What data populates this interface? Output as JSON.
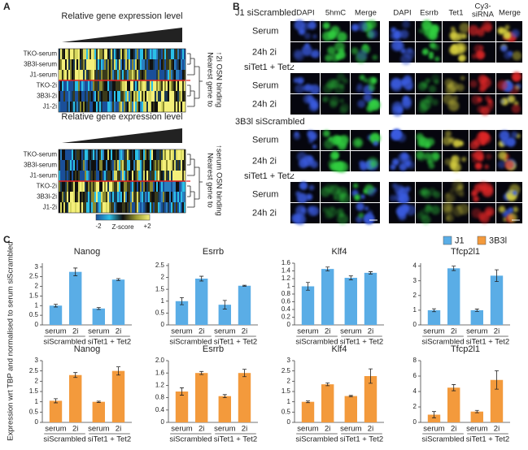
{
  "panel_a": {
    "label": "A",
    "heatmaps": [
      {
        "title": "Relative gene expression level",
        "rows": [
          "TKO-serum",
          "3B3l-serum",
          "J1-serum",
          "TKO-2i",
          "3B3l-2i",
          "J1-2i"
        ],
        "side_label": [
          "Nearest gene to",
          "↑2i OSN binding"
        ]
      },
      {
        "title": "Relative gene expression level",
        "rows": [
          "TKO-serum",
          "3B3l-serum",
          "J1-serum",
          "TKO-2i",
          "3B3l-2i",
          "J1-2i"
        ],
        "side_label": [
          "Nearest gene to",
          "↑serum OSN binding"
        ]
      }
    ],
    "colorbar": {
      "min_label": "-2",
      "title": "Z-score",
      "max_label": "+2"
    }
  },
  "panel_b": {
    "label": "B",
    "columns_left": [
      "DAPI",
      "5hmC",
      "Merge"
    ],
    "columns_right": [
      "DAPI",
      "Esrrb",
      "Tet1",
      [
        "Cy3-",
        "siRNA"
      ],
      "Merge"
    ],
    "blocks": [
      {
        "title": "J1 siScrambled",
        "rows": [
          "Serum",
          "24h 2i",
          "Serum",
          "24h 2i"
        ],
        "group_label": "siTet1 + Tet2"
      },
      {
        "title": "3B3l siScrambled",
        "rows": [
          "Serum",
          "24h 2i",
          "Serum",
          "24h 2i"
        ],
        "group_label": "siTet1 + Tet2"
      }
    ]
  },
  "panel_c": {
    "label": "C",
    "y_label": "Expression wrt TBP and normalised to serum siScrambled"
  },
  "chart_data": [
    {
      "type": "bar",
      "title": "Nanog",
      "categories": [
        "serum",
        "2i",
        "serum",
        "2i"
      ],
      "groups": [
        "siScrambled",
        "siTet1 + Tet2"
      ],
      "series": [
        {
          "name": "J1",
          "color": "#5aade6",
          "values": [
            1.0,
            2.75,
            0.85,
            2.35
          ],
          "errors": [
            0.07,
            0.2,
            0.05,
            0.05
          ]
        }
      ],
      "ylim": [
        0,
        3.2
      ],
      "yticks": [
        0,
        0.5,
        1,
        1.5,
        2,
        2.5,
        3
      ]
    },
    {
      "type": "bar",
      "title": "Esrrb",
      "categories": [
        "serum",
        "2i",
        "serum",
        "2i"
      ],
      "groups": [
        "siScrambled",
        "siTet1 + Tet2"
      ],
      "series": [
        {
          "name": "J1",
          "color": "#5aade6",
          "values": [
            1.0,
            1.95,
            0.85,
            1.65
          ],
          "errors": [
            0.15,
            0.1,
            0.18,
            0.02
          ]
        }
      ],
      "ylim": [
        0,
        2.6
      ],
      "yticks": [
        0,
        0.5,
        1,
        1.5,
        2,
        2.5
      ]
    },
    {
      "type": "bar",
      "title": "Klf4",
      "categories": [
        "serum",
        "2i",
        "serum",
        "2i"
      ],
      "groups": [
        "siScrambled",
        "siTet1 + Tet2"
      ],
      "series": [
        {
          "name": "J1",
          "color": "#5aade6",
          "values": [
            1.0,
            1.45,
            1.22,
            1.35
          ],
          "errors": [
            0.1,
            0.05,
            0.05,
            0.03
          ]
        }
      ],
      "ylim": [
        0,
        1.6
      ],
      "yticks": [
        0,
        0.2,
        0.4,
        0.6,
        0.8,
        1,
        1.2,
        1.4,
        1.6
      ]
    },
    {
      "type": "bar",
      "title": "Tfcp2l1",
      "categories": [
        "serum",
        "2i",
        "serum",
        "2i"
      ],
      "groups": [
        "siScrambled",
        "siTet1 + Tet2"
      ],
      "series": [
        {
          "name": "J1",
          "color": "#5aade6",
          "values": [
            1.0,
            3.85,
            1.0,
            3.35
          ],
          "errors": [
            0.1,
            0.15,
            0.08,
            0.4
          ]
        }
      ],
      "ylim": [
        0,
        4.2
      ],
      "yticks": [
        0,
        1,
        2,
        3,
        4
      ]
    },
    {
      "type": "bar",
      "title": "Nanog",
      "categories": [
        "serum",
        "2i",
        "serum",
        "2i"
      ],
      "groups": [
        "siScrambled",
        "siTet1 + Tet2"
      ],
      "series": [
        {
          "name": "3B3l",
          "color": "#f39a3c",
          "values": [
            1.05,
            2.3,
            1.0,
            2.5
          ],
          "errors": [
            0.1,
            0.12,
            0.03,
            0.2
          ]
        }
      ],
      "ylim": [
        0,
        3
      ],
      "yticks": [
        0,
        0.5,
        1,
        1.5,
        2,
        2.5,
        3
      ]
    },
    {
      "type": "bar",
      "title": "Esrrb",
      "categories": [
        "serum",
        "2i",
        "serum",
        "2i"
      ],
      "groups": [
        "siScrambled",
        "siTet1 + Tet2"
      ],
      "series": [
        {
          "name": "3B3l",
          "color": "#f39a3c",
          "values": [
            1.0,
            1.6,
            0.85,
            1.6
          ],
          "errors": [
            0.12,
            0.05,
            0.05,
            0.12
          ]
        }
      ],
      "ylim": [
        0,
        2
      ],
      "yticks": [
        0,
        0.4,
        0.8,
        1.2,
        1.6,
        {
          "value": 2,
          "label": "2.0"
        }
      ]
    },
    {
      "type": "bar",
      "title": "Klf4",
      "categories": [
        "serum",
        "2i",
        "serum",
        "2i"
      ],
      "groups": [
        "siScrambled",
        "siTet1 + Tet2"
      ],
      "series": [
        {
          "name": "3B3l",
          "color": "#f39a3c",
          "values": [
            1.0,
            1.85,
            1.28,
            2.25
          ],
          "errors": [
            0.04,
            0.07,
            0.03,
            0.35
          ]
        }
      ],
      "ylim": [
        0,
        3
      ],
      "yticks": [
        0,
        0.5,
        1,
        1.5,
        2,
        2.5,
        3
      ]
    },
    {
      "type": "bar",
      "title": "Tfcp2l1",
      "categories": [
        "serum",
        "2i",
        "serum",
        "2i"
      ],
      "groups": [
        "siScrambled",
        "siTet1 + Tet2"
      ],
      "series": [
        {
          "name": "3B3l",
          "color": "#f39a3c",
          "values": [
            1.0,
            4.5,
            1.4,
            5.5
          ],
          "errors": [
            0.4,
            0.4,
            0.15,
            1.2
          ]
        }
      ],
      "ylim": [
        0,
        8
      ],
      "yticks": [
        0,
        2,
        4,
        6,
        8
      ]
    }
  ]
}
